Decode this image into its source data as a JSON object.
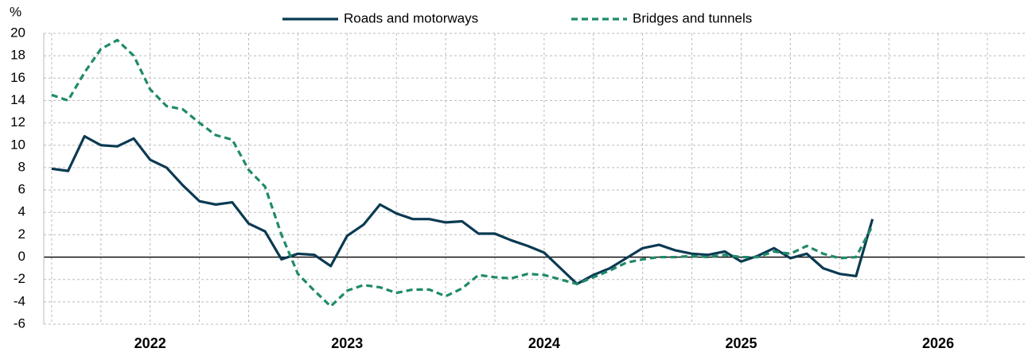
{
  "chart_data": {
    "type": "line",
    "y_label": "%",
    "x": [
      2022,
      2022.0833,
      2022.1667,
      2022.25,
      2022.3333,
      2022.4167,
      2022.5,
      2022.5833,
      2022.6667,
      2022.75,
      2022.8333,
      2022.9167,
      2023,
      2023.0833,
      2023.1667,
      2023.25,
      2023.3333,
      2023.4167,
      2023.5,
      2023.5833,
      2023.6667,
      2023.75,
      2023.8333,
      2023.9167,
      2024,
      2024.0833,
      2024.1667,
      2024.25,
      2024.3333,
      2024.4167,
      2024.5,
      2024.5833,
      2024.6667,
      2024.75,
      2024.8333,
      2024.9167,
      2025,
      2025.0833,
      2025.1667,
      2025.25,
      2025.3333,
      2025.4167,
      2025.5,
      2025.5833,
      2025.6667,
      2025.75,
      2025.8333,
      2025.9167,
      2026,
      2026.0833,
      2026.1667
    ],
    "series": [
      {
        "name": "Roads and motorways",
        "color": "#0b3a52",
        "dashed": false,
        "values": [
          7.9,
          7.7,
          10.8,
          10.0,
          9.9,
          10.6,
          8.7,
          8.0,
          6.4,
          5.0,
          4.7,
          4.9,
          3.0,
          2.3,
          -0.2,
          0.3,
          0.2,
          -0.8,
          1.9,
          2.9,
          4.7,
          3.9,
          3.4,
          3.4,
          3.1,
          3.2,
          2.1,
          2.1,
          1.5,
          1.0,
          0.4,
          -1.0,
          -2.4,
          -1.6,
          -1.0,
          -0.1,
          0.8,
          1.1,
          0.6,
          0.3,
          0.2,
          0.5,
          -0.4,
          0.1,
          0.8,
          -0.1,
          0.3,
          -1.0,
          -1.5,
          -1.7,
          3.4
        ]
      },
      {
        "name": "Bridges and tunnels",
        "color": "#1f8a6a",
        "dashed": true,
        "values": [
          14.5,
          14.0,
          16.5,
          18.6,
          19.4,
          18.0,
          15.0,
          13.5,
          13.2,
          12.0,
          10.9,
          10.5,
          7.8,
          6.3,
          2.0,
          -1.5,
          -3.0,
          -4.4,
          -3.0,
          -2.5,
          -2.7,
          -3.2,
          -2.9,
          -2.9,
          -3.5,
          -2.8,
          -1.6,
          -1.8,
          -1.9,
          -1.5,
          -1.6,
          -2.0,
          -2.4,
          -1.8,
          -1.2,
          -0.5,
          -0.2,
          0.0,
          0.0,
          0.1,
          0.0,
          0.2,
          0.0,
          0.0,
          0.5,
          0.3,
          1.0,
          0.3,
          -0.1,
          0.0,
          2.8
        ]
      }
    ],
    "xlim": [
      2021.96,
      2026.94
    ],
    "xticks": [
      {
        "value": 2022.5,
        "label": "2022"
      },
      {
        "value": 2023.5,
        "label": "2023"
      },
      {
        "value": 2024.5,
        "label": "2024"
      },
      {
        "value": 2025.5,
        "label": "2025"
      },
      {
        "value": 2026.5,
        "label": "2026"
      }
    ],
    "xgrid": [
      2022,
      2022.25,
      2022.5,
      2022.75,
      2023,
      2023.25,
      2023.5,
      2023.75,
      2024,
      2024.25,
      2024.5,
      2024.75,
      2025,
      2025.25,
      2025.5,
      2025.75,
      2026,
      2026.25,
      2026.5,
      2026.75
    ],
    "ylim": [
      -6,
      20
    ],
    "yticks": [
      -6,
      -4,
      -2,
      0,
      2,
      4,
      6,
      8,
      10,
      12,
      14,
      16,
      18,
      20
    ],
    "grid": true
  }
}
